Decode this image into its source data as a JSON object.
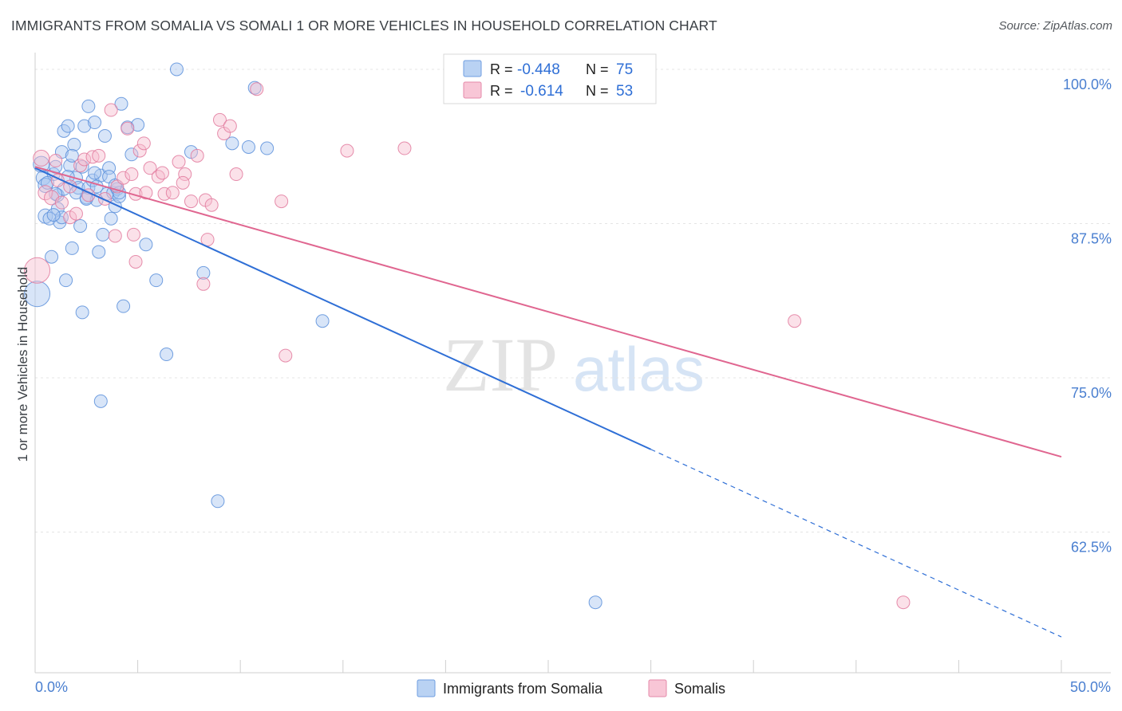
{
  "title": "IMMIGRANTS FROM SOMALIA VS SOMALI 1 OR MORE VEHICLES IN HOUSEHOLD CORRELATION CHART",
  "source": "Source: ZipAtlas.com",
  "watermark": {
    "zip": "ZIP",
    "atlas": "atlas"
  },
  "chart_data": {
    "type": "scatter",
    "title": "IMMIGRANTS FROM SOMALIA VS SOMALI 1 OR MORE VEHICLES IN HOUSEHOLD CORRELATION CHART",
    "xlabel": "",
    "ylabel": "1 or more Vehicles in Household",
    "xlim": [
      0,
      50
    ],
    "ylim": [
      52,
      102
    ],
    "x_tick_labels": {
      "min": "0.0%",
      "max": "50.0%"
    },
    "y_ticks": [
      {
        "value": 100,
        "label": "100.0%"
      },
      {
        "value": 87.5,
        "label": "87.5%"
      },
      {
        "value": 75,
        "label": "75.0%"
      },
      {
        "value": 62.5,
        "label": "62.5%"
      }
    ],
    "grid": true,
    "legend": {
      "placement": "top-center",
      "entries": [
        {
          "series": "Immigrants from Somalia",
          "r_label": "R =",
          "r": "-0.448",
          "n_label": "N =",
          "n": "75"
        },
        {
          "series": "Somalis",
          "r_label": "R =",
          "r": "-0.614",
          "n_label": "N =",
          "n": "53"
        }
      ]
    },
    "series": [
      {
        "name": "Immigrants from Somalia",
        "color": "#5b8fdb",
        "fill": "#a9c6ef",
        "trend": {
          "x0": 0,
          "y0": 92.0,
          "x1": 30,
          "y1": 69.2,
          "dash_to_x": 50,
          "dash_to_y": 54.0
        },
        "points": [
          [
            0.1,
            81.8,
            16
          ],
          [
            0.3,
            92.3,
            10
          ],
          [
            0.4,
            91.2,
            9
          ],
          [
            0.5,
            90.6,
            9
          ],
          [
            0.5,
            88.1,
            9
          ],
          [
            0.7,
            87.9,
            8
          ],
          [
            0.8,
            84.8,
            8
          ],
          [
            0.9,
            91.5,
            8
          ],
          [
            1.0,
            92.1,
            8
          ],
          [
            1.1,
            89.8,
            8
          ],
          [
            1.1,
            88.7,
            8
          ],
          [
            1.2,
            87.6,
            8
          ],
          [
            1.3,
            93.3,
            8
          ],
          [
            1.4,
            95.0,
            8
          ],
          [
            1.4,
            90.3,
            8
          ],
          [
            1.5,
            82.9,
            8
          ],
          [
            1.6,
            95.4,
            8
          ],
          [
            1.7,
            92.2,
            8
          ],
          [
            1.8,
            85.5,
            8
          ],
          [
            1.9,
            93.9,
            8
          ],
          [
            2.0,
            91.2,
            8
          ],
          [
            2.1,
            90.4,
            8
          ],
          [
            2.2,
            87.3,
            8
          ],
          [
            2.3,
            80.3,
            8
          ],
          [
            2.4,
            95.4,
            8
          ],
          [
            2.5,
            89.6,
            8
          ],
          [
            2.6,
            90.4,
            8
          ],
          [
            2.6,
            97.0,
            8
          ],
          [
            2.8,
            91.0,
            8
          ],
          [
            2.9,
            95.7,
            8
          ],
          [
            3.0,
            89.4,
            8
          ],
          [
            3.1,
            85.2,
            8
          ],
          [
            3.2,
            91.4,
            8
          ],
          [
            3.3,
            86.6,
            8
          ],
          [
            3.4,
            94.6,
            8
          ],
          [
            3.5,
            89.9,
            8
          ],
          [
            3.6,
            92.0,
            8
          ],
          [
            3.7,
            87.9,
            8
          ],
          [
            3.8,
            90.0,
            8
          ],
          [
            3.9,
            88.9,
            8
          ],
          [
            4.0,
            90.3,
            8
          ],
          [
            4.1,
            89.7,
            8
          ],
          [
            4.2,
            97.2,
            8
          ],
          [
            4.3,
            80.8,
            8
          ],
          [
            4.5,
            95.3,
            8
          ],
          [
            4.7,
            93.1,
            8
          ],
          [
            5.0,
            95.5,
            8
          ],
          [
            5.4,
            85.8,
            8
          ],
          [
            5.9,
            82.9,
            8
          ],
          [
            6.4,
            76.9,
            8
          ],
          [
            6.9,
            100.0,
            8
          ],
          [
            7.6,
            93.3,
            8
          ],
          [
            8.2,
            83.5,
            8
          ],
          [
            8.9,
            65.0,
            8
          ],
          [
            9.6,
            94.0,
            8
          ],
          [
            10.4,
            93.7,
            8
          ],
          [
            10.7,
            98.5,
            8
          ],
          [
            11.3,
            93.6,
            8
          ],
          [
            14.0,
            79.6,
            8
          ],
          [
            3.2,
            73.1,
            8
          ],
          [
            27.3,
            56.8,
            8
          ],
          [
            1.0,
            89.9,
            8
          ],
          [
            2.3,
            92.1,
            8
          ],
          [
            3.6,
            91.3,
            8
          ],
          [
            4.1,
            90.0,
            8
          ],
          [
            1.6,
            91.3,
            8
          ],
          [
            2.9,
            91.6,
            8
          ],
          [
            0.6,
            90.8,
            8
          ],
          [
            1.3,
            88.0,
            8
          ],
          [
            2.5,
            89.5,
            8
          ],
          [
            3.9,
            90.6,
            8
          ],
          [
            0.9,
            88.2,
            8
          ],
          [
            2.0,
            90.0,
            8
          ],
          [
            3.0,
            90.5,
            8
          ],
          [
            1.8,
            93.0,
            8
          ]
        ]
      },
      {
        "name": "Somalis",
        "color": "#e27a9d",
        "fill": "#f6bccf",
        "trend": {
          "x0": 0,
          "y0": 92.1,
          "x1": 50,
          "y1": 68.6
        },
        "points": [
          [
            0.1,
            83.7,
            16
          ],
          [
            0.3,
            92.8,
            10
          ],
          [
            0.5,
            90.0,
            9
          ],
          [
            0.8,
            89.6,
            9
          ],
          [
            1.0,
            92.6,
            8
          ],
          [
            1.1,
            91.0,
            8
          ],
          [
            1.3,
            89.2,
            8
          ],
          [
            1.7,
            88.0,
            8
          ],
          [
            2.0,
            88.3,
            8
          ],
          [
            2.2,
            92.2,
            8
          ],
          [
            2.4,
            92.7,
            8
          ],
          [
            2.6,
            89.8,
            8
          ],
          [
            2.8,
            92.9,
            8
          ],
          [
            3.1,
            93.0,
            8
          ],
          [
            3.4,
            89.5,
            8
          ],
          [
            3.7,
            96.7,
            8
          ],
          [
            4.0,
            90.5,
            8
          ],
          [
            4.3,
            91.2,
            8
          ],
          [
            4.5,
            95.2,
            8
          ],
          [
            4.7,
            91.5,
            8
          ],
          [
            4.9,
            89.9,
            8
          ],
          [
            5.1,
            93.4,
            8
          ],
          [
            5.3,
            94.0,
            8
          ],
          [
            5.6,
            92.0,
            8
          ],
          [
            6.0,
            91.3,
            8
          ],
          [
            6.3,
            89.9,
            8
          ],
          [
            6.7,
            90.0,
            8
          ],
          [
            7.0,
            92.5,
            8
          ],
          [
            7.3,
            91.5,
            8
          ],
          [
            7.6,
            89.3,
            8
          ],
          [
            7.9,
            93.0,
            8
          ],
          [
            8.3,
            89.4,
            8
          ],
          [
            8.6,
            89.0,
            8
          ],
          [
            8.2,
            82.6,
            8
          ],
          [
            8.4,
            86.2,
            8
          ],
          [
            9.0,
            95.9,
            8
          ],
          [
            9.2,
            94.8,
            8
          ],
          [
            9.5,
            95.4,
            8
          ],
          [
            9.8,
            91.5,
            8
          ],
          [
            10.8,
            98.4,
            8
          ],
          [
            12.0,
            89.3,
            8
          ],
          [
            12.2,
            76.8,
            8
          ],
          [
            15.2,
            93.4,
            8
          ],
          [
            18.0,
            93.6,
            8
          ],
          [
            37.0,
            79.6,
            8
          ],
          [
            42.3,
            56.8,
            8
          ],
          [
            4.8,
            86.6,
            8
          ],
          [
            4.9,
            84.4,
            8
          ],
          [
            3.9,
            86.5,
            8
          ],
          [
            7.2,
            90.8,
            8
          ],
          [
            5.4,
            90.0,
            8
          ],
          [
            1.7,
            90.5,
            8
          ],
          [
            6.2,
            91.6,
            8
          ]
        ]
      }
    ]
  }
}
